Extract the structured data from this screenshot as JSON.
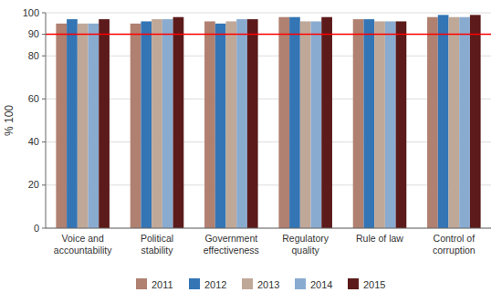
{
  "chart_data": {
    "type": "bar",
    "ylabel": "% 100",
    "categories": [
      "Voice and\naccountability",
      "Political\nstability",
      "Government\neffectiveness",
      "Regulatory\nquality",
      "Rule of law",
      "Control of\ncorruption"
    ],
    "series": [
      {
        "name": "2011",
        "color": "#b08070",
        "values": [
          95,
          95,
          96,
          98,
          97,
          98
        ]
      },
      {
        "name": "2012",
        "color": "#3375b5",
        "values": [
          97,
          96,
          95,
          98,
          97,
          99
        ]
      },
      {
        "name": "2013",
        "color": "#c0a898",
        "values": [
          95,
          97,
          96,
          96,
          96,
          98
        ]
      },
      {
        "name": "2014",
        "color": "#8aabd0",
        "values": [
          95,
          97,
          97,
          96,
          96,
          98
        ]
      },
      {
        "name": "2015",
        "color": "#5c1a1a",
        "values": [
          97,
          98,
          97,
          98,
          96,
          99
        ]
      }
    ],
    "ylim": [
      0,
      100
    ],
    "yticks": [
      0,
      20,
      40,
      60,
      80,
      90,
      100
    ],
    "reference_line": {
      "value": 90,
      "color": "#ff0000"
    },
    "grid": true,
    "legend": "bottom"
  }
}
